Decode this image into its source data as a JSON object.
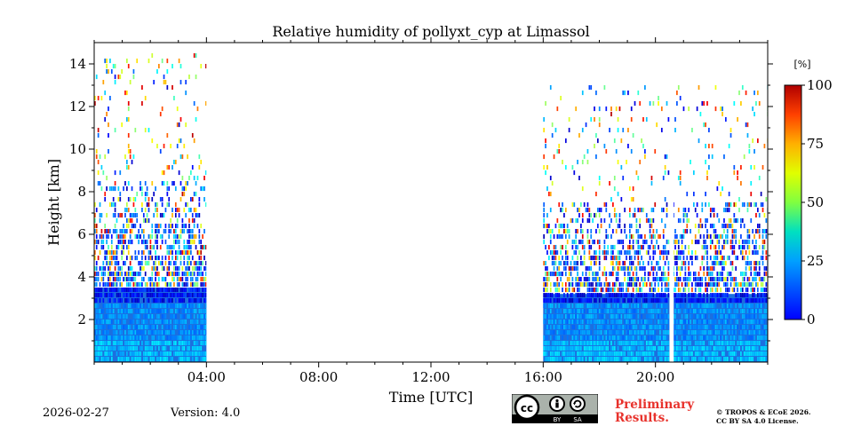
{
  "chart_data": {
    "type": "heatmap",
    "title": "Relative humidity of pollyxt_cyp at Limassol",
    "xlabel": "Time [UTC]",
    "ylabel": "Height [km]",
    "xlim_hours": [
      0,
      24
    ],
    "ylim_km": [
      0,
      15
    ],
    "x_ticks": [
      {
        "hour": 4,
        "label": "04:00"
      },
      {
        "hour": 8,
        "label": "08:00"
      },
      {
        "hour": 12,
        "label": "12:00"
      },
      {
        "hour": 16,
        "label": "16:00"
      },
      {
        "hour": 20,
        "label": "20:00"
      }
    ],
    "y_ticks": [
      {
        "km": 2,
        "label": "2"
      },
      {
        "km": 4,
        "label": "4"
      },
      {
        "km": 6,
        "label": "6"
      },
      {
        "km": 8,
        "label": "8"
      },
      {
        "km": 10,
        "label": "10"
      },
      {
        "km": 12,
        "label": "12"
      },
      {
        "km": 14,
        "label": "14"
      }
    ],
    "colorbar": {
      "unit": "[%]",
      "range": [
        0,
        100
      ],
      "ticks": [
        0,
        25,
        50,
        75,
        100
      ],
      "colormap": "jet"
    },
    "data_segments": [
      {
        "start_hour": 0.0,
        "end_hour": 4.0,
        "dense_top_km": 3.5,
        "sparse_top_km": 8.5,
        "scatter_top_km": 14.3
      },
      {
        "start_hour": 16.0,
        "end_hour": 24.0,
        "dense_top_km": 3.2,
        "sparse_top_km": 7.5,
        "scatter_top_km": 13.0
      }
    ],
    "gaps": [
      {
        "start_hour": 20.5,
        "end_hour": 20.65
      }
    ]
  },
  "footer": {
    "date": "2026-02-27",
    "version": "Version: 4.0",
    "license_badge": {
      "main": "cc",
      "by": "BY",
      "sa": "SA"
    },
    "preliminary_line1": "Preliminary",
    "preliminary_line2": "Results.",
    "copyright_line1": "© TROPOS & ECoE 2026.",
    "copyright_line2": "CC BY SA 4.0 License."
  }
}
